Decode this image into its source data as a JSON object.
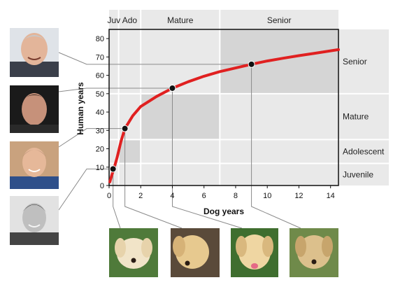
{
  "chart_data": {
    "type": "line",
    "xlabel": "Dog years",
    "ylabel": "Human years",
    "xlim": [
      0,
      14.5
    ],
    "ylim": [
      0,
      85
    ],
    "xticks": [
      0,
      2,
      4,
      6,
      8,
      10,
      12,
      14
    ],
    "yticks": [
      0,
      10,
      20,
      30,
      40,
      50,
      60,
      70,
      80
    ],
    "grid": false,
    "curve": {
      "color": "#e02020",
      "x": [
        0.05,
        0.15,
        0.3,
        0.5,
        0.75,
        1,
        1.5,
        2,
        3,
        4,
        5,
        6,
        7,
        8,
        9,
        10,
        11,
        12,
        13,
        14.5
      ],
      "y": [
        2,
        5,
        9,
        15,
        24,
        31,
        38,
        43,
        48.5,
        53,
        56.5,
        59.5,
        62,
        64,
        66,
        67.8,
        69.3,
        70.7,
        72,
        74
      ]
    },
    "highlighted_points": [
      {
        "x": 0.25,
        "y": 9
      },
      {
        "x": 1,
        "y": 31
      },
      {
        "x": 4,
        "y": 53
      },
      {
        "x": 9,
        "y": 66
      }
    ],
    "top_stages": [
      {
        "label": "Juv",
        "x_from": 0,
        "x_to": 0.6
      },
      {
        "label": "Ado",
        "x_from": 0.6,
        "x_to": 2
      },
      {
        "label": "Mature",
        "x_from": 2,
        "x_to": 7
      },
      {
        "label": "Senior",
        "x_from": 7,
        "x_to": 14.5
      }
    ],
    "right_stages": [
      {
        "label": "Juvenile",
        "y_from": 0,
        "y_to": 12
      },
      {
        "label": "Adolescent",
        "y_from": 12,
        "y_to": 25
      },
      {
        "label": "Mature",
        "y_from": 25,
        "y_to": 50
      },
      {
        "label": "Senior",
        "y_from": 50,
        "y_to": 85
      }
    ],
    "stage_boxes": [
      {
        "x_from": 0.6,
        "x_to": 2,
        "y_from": 12,
        "y_to": 25
      },
      {
        "x_from": 2,
        "x_to": 7,
        "y_from": 25,
        "y_to": 50
      },
      {
        "x_from": 7,
        "x_to": 14.5,
        "y_from": 50,
        "y_to": 85
      }
    ]
  },
  "human_photos": [
    {
      "icon": "adult-man-senior-portrait"
    },
    {
      "icon": "adult-man-mature-portrait"
    },
    {
      "icon": "teen-boy-adolescent-portrait"
    },
    {
      "icon": "boy-juvenile-portrait"
    }
  ],
  "dog_photos": [
    {
      "icon": "labrador-puppy-photo"
    },
    {
      "icon": "young-labrador-photo"
    },
    {
      "icon": "adult-labrador-photo"
    },
    {
      "icon": "senior-labrador-photo"
    }
  ],
  "colors": {
    "panel": "#e9e9e9",
    "box": "#d5d5d5",
    "curve": "#e02020",
    "leader": "#8a8a8a"
  }
}
